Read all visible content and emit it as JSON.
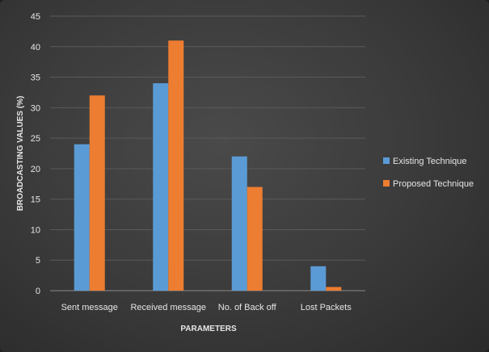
{
  "chart_data": {
    "type": "bar",
    "title": "",
    "xlabel": "PARAMETERS",
    "ylabel": "BROADCASTING VALUES (%)",
    "categories": [
      "Sent message",
      "Received message",
      "No. of Back off",
      "Lost Packets"
    ],
    "series": [
      {
        "name": "Existing Technique",
        "color": "#5b9bd5",
        "values": [
          24,
          34,
          22,
          4
        ]
      },
      {
        "name": "Proposed Technique",
        "color": "#ed7d31",
        "values": [
          32,
          41,
          17,
          0.6
        ]
      }
    ],
    "ylim": [
      0,
      45
    ],
    "yticks": [
      0,
      5,
      10,
      15,
      20,
      25,
      30,
      35,
      40,
      45
    ],
    "grid": true,
    "legend_position": "right"
  }
}
